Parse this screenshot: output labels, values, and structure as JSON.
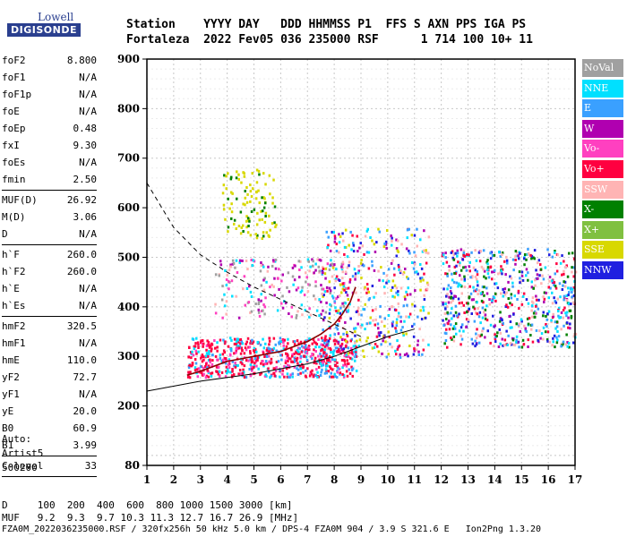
{
  "logo": {
    "top": "Lowell",
    "bottom": "DIGISONDE"
  },
  "header": {
    "line1": "Station    YYYY DAY   DDD HHMMSS P1  FFS S AXN PPS IGA PS",
    "line2": "Fortaleza  2022 Fev05 036 235000 RSF      1 714 100 10+ 11"
  },
  "params": [
    {
      "label": "foF2",
      "value": "8.800"
    },
    {
      "label": "foF1",
      "value": "N/A"
    },
    {
      "label": "foF1p",
      "value": "N/A"
    },
    {
      "label": "foE",
      "value": "N/A"
    },
    {
      "label": "foEp",
      "value": "0.48"
    },
    {
      "label": "fxI",
      "value": "9.30"
    },
    {
      "label": "foEs",
      "value": "N/A"
    },
    {
      "label": "fmin",
      "value": "2.50"
    },
    {
      "sep": true
    },
    {
      "label": "MUF(D)",
      "value": "26.92"
    },
    {
      "label": "M(D)",
      "value": "3.06"
    },
    {
      "label": "D",
      "value": "N/A"
    },
    {
      "sep": true
    },
    {
      "label": "h`F",
      "value": "260.0"
    },
    {
      "label": "h`F2",
      "value": "260.0"
    },
    {
      "label": "h`E",
      "value": "N/A"
    },
    {
      "label": "h`Es",
      "value": "N/A"
    },
    {
      "sep": true
    },
    {
      "label": "hmF2",
      "value": "320.5"
    },
    {
      "label": "hmF1",
      "value": "N/A"
    },
    {
      "label": "hmE",
      "value": "110.0"
    },
    {
      "label": "yF2",
      "value": "72.7"
    },
    {
      "label": "yF1",
      "value": "N/A"
    },
    {
      "label": "yE",
      "value": "20.0"
    },
    {
      "label": "B0",
      "value": "60.9"
    },
    {
      "label": "B1",
      "value": "3.99"
    },
    {
      "sep": true
    },
    {
      "label": "C-level",
      "value": "33"
    },
    {
      "sep": true
    }
  ],
  "autoscale": {
    "line1": "Auto:",
    "line2": "Artist5",
    "line3": "500200"
  },
  "footer": {
    "d_row": "D     100  200  400  600  800 1000 1500 3000 [km]",
    "muf_row": "MUF   9.2  9.3  9.7 10.3 11.3 12.7 16.7 26.9 [MHz]",
    "file_row": "FZA0M_2022036235000.RSF / 320fx256h 50 kHz 5.0 km / DPS-4 FZA0M 904 / 3.9 S 321.6 E   Ion2Png 1.3.20"
  },
  "legend": [
    {
      "label": "NoVal",
      "color": "#a0a0a0"
    },
    {
      "label": "NNE",
      "color": "#00e0ff"
    },
    {
      "label": "E",
      "color": "#3aa0ff"
    },
    {
      "label": "W",
      "color": "#b000b0"
    },
    {
      "label": "Vo-",
      "color": "#ff40c0"
    },
    {
      "label": "Vo+",
      "color": "#ff0040"
    },
    {
      "label": "SSW",
      "color": "#ffb4b4"
    },
    {
      "label": "X-",
      "color": "#008000"
    },
    {
      "label": "X+",
      "color": "#80c040"
    },
    {
      "label": "SSE",
      "color": "#d8d800"
    },
    {
      "label": "NNW",
      "color": "#2020e0"
    }
  ],
  "chart_data": {
    "type": "scatter",
    "xlim": [
      1,
      17
    ],
    "ylim": [
      80,
      900
    ],
    "x_ticks": [
      1,
      2,
      3,
      4,
      5,
      6,
      7,
      8,
      9,
      10,
      11,
      12,
      13,
      14,
      15,
      16,
      17
    ],
    "y_ticks": [
      80,
      200,
      300,
      400,
      500,
      600,
      700,
      800,
      900
    ],
    "grid": true,
    "traces": [
      {
        "name": "O-trace profile",
        "color": "#8b0000",
        "x": [
          2.5,
          3,
          3.5,
          4,
          4.5,
          5,
          5.5,
          6,
          6.5,
          7,
          7.5,
          8,
          8.3,
          8.6,
          8.8
        ],
        "y": [
          262,
          270,
          280,
          290,
          295,
          300,
          305,
          310,
          320,
          330,
          345,
          365,
          385,
          410,
          440
        ]
      },
      {
        "name": "Model lower",
        "color": "#000000",
        "x": [
          1,
          3,
          5,
          7,
          8,
          9,
          10,
          11
        ],
        "y": [
          230,
          250,
          265,
          285,
          300,
          320,
          340,
          355
        ]
      },
      {
        "name": "Model dashed",
        "color": "#000000",
        "x": [
          1,
          2,
          3,
          4,
          5,
          6,
          7,
          8,
          9
        ],
        "y": [
          650,
          560,
          505,
          470,
          440,
          415,
          390,
          365,
          340
        ]
      }
    ],
    "clusters": [
      {
        "name": "main F2 echoes",
        "x": [
          2.5,
          8.8
        ],
        "y": [
          260,
          340
        ]
      },
      {
        "name": "sporadic upper",
        "x": [
          3.5,
          8.5
        ],
        "y": [
          380,
          500
        ]
      },
      {
        "name": "SSE high",
        "x": [
          3.8,
          5.8
        ],
        "y": [
          540,
          680
        ]
      },
      {
        "name": "multi-hop",
        "x": [
          7.5,
          11.5
        ],
        "y": [
          300,
          560
        ]
      },
      {
        "name": "oblique",
        "x": [
          12,
          17
        ],
        "y": [
          320,
          520
        ]
      }
    ]
  }
}
